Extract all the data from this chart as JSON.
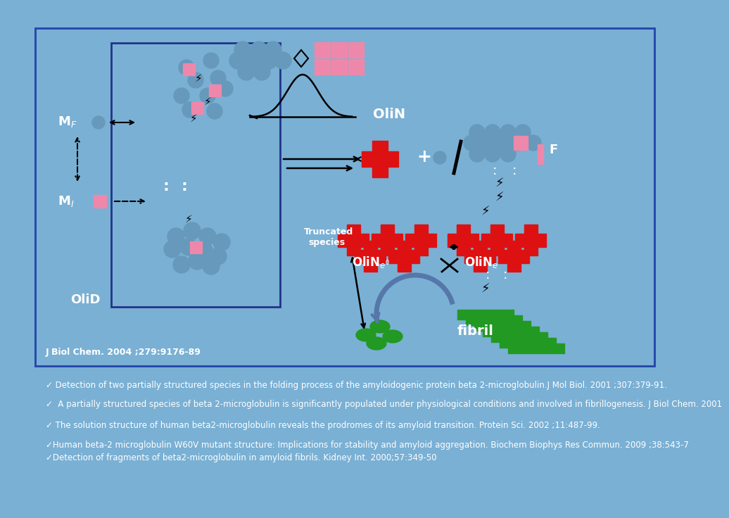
{
  "bg_color": "#7ab0d4",
  "red_color": "#dd1111",
  "pink_color": "#ee88aa",
  "blue_circle_color": "#6699bb",
  "green_color": "#229922",
  "border_color": "#2244aa",
  "inner_border_color": "#223388",
  "font_color": "white",
  "text_color": "#333355",
  "text_lines": [
    "✓ Detection of two partially structured species in the folding process of the amyloidogenic protein beta 2-microglobulin.J Mol Biol. 2001 ;307:379-91.",
    "✓  A partially structured species of beta 2-microglobulin is significantly populated under physiological conditions and involved in fibrillogenesis. J Biol Chem. 2001",
    "✓ The solution structure of human beta2-microglobulin reveals the prodromes of its amyloid transition. Protein Sci. 2002 ;11:487-99.",
    "✓Human beta-2 microglobulin W60V mutant structure: Implications for stability and amyloid aggregation. Biochem Biophys Res Commun. 2009 ;38:543-7",
    "✓Detection of fragments of beta2-microglobulin in amyloid fibrils. Kidney Int. 2000;57:349-50"
  ]
}
